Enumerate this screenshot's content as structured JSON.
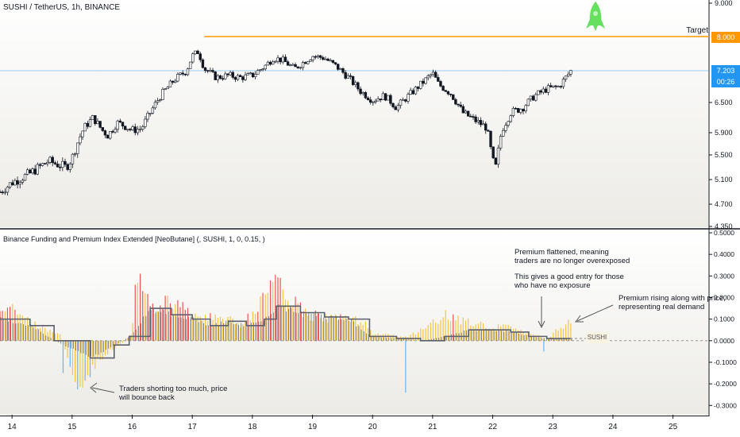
{
  "header": {
    "symbol_title": "SUSHI / TetherUS, 1h, BINANCE",
    "indicator_title": "Binance Funding and Premium Index Extended [NeoButane] (, SUSHI, 1, 0, 0.15, )"
  },
  "annotations": {
    "target": "Target",
    "flattened": "Premium flattened, meaning\ntraders are no longer overexposed",
    "entry": "This gives a good entry for those\nwho have no exposure",
    "rising": "Premium rising along with price,\nrepresenting real demand",
    "shorting": "Traders shorting too much, price\nwill bounce back",
    "symbol": "SUSHI"
  },
  "price_tags": {
    "target": "8.000",
    "last_price": "7.203",
    "countdown": "00:26"
  },
  "colors": {
    "target_line": "#ff9800",
    "last_price": "#2196f3",
    "up_candle": "#ffffff",
    "down_candle": "#131722",
    "bar_high": "#ef5350",
    "bar_mid": "#f5c542",
    "bar_low": "#64b5f6",
    "step_line": "#5d606b",
    "rocket": "#66e05e"
  },
  "chart_data": [
    {
      "type": "candlestick",
      "title": "SUSHI / TetherUS, 1h, BINANCE",
      "x_ticks": [
        "14",
        "15",
        "16",
        "17",
        "18",
        "19",
        "20",
        "21",
        "22",
        "23",
        "24",
        "25"
      ],
      "y_ticks": [
        "9.000",
        "8.000",
        "7.203",
        "6.500",
        "5.900",
        "5.500",
        "5.100",
        "4.700",
        "4.350"
      ],
      "y_axis_values": [
        9.0,
        8.0,
        7.203,
        6.5,
        5.9,
        5.5,
        5.1,
        4.7,
        4.35
      ],
      "ylim": [
        4.35,
        9.0
      ],
      "x_range_days": [
        13.8,
        25.6
      ],
      "target": 8.0,
      "last_price": 7.203,
      "close_path": [
        [
          13.8,
          4.9
        ],
        [
          14.0,
          5.05
        ],
        [
          14.3,
          5.2
        ],
        [
          14.6,
          5.4
        ],
        [
          14.9,
          5.3
        ],
        [
          15.0,
          5.45
        ],
        [
          15.1,
          5.75
        ],
        [
          15.2,
          6.0
        ],
        [
          15.35,
          6.2
        ],
        [
          15.5,
          5.95
        ],
        [
          15.6,
          5.85
        ],
        [
          15.75,
          6.1
        ],
        [
          15.85,
          6.05
        ],
        [
          16.0,
          5.95
        ],
        [
          16.15,
          5.98
        ],
        [
          16.3,
          6.3
        ],
        [
          16.5,
          6.7
        ],
        [
          16.7,
          7.0
        ],
        [
          16.9,
          7.2
        ],
        [
          17.0,
          7.55
        ],
        [
          17.1,
          7.65
        ],
        [
          17.2,
          7.25
        ],
        [
          17.4,
          7.05
        ],
        [
          17.6,
          7.1
        ],
        [
          17.8,
          7.05
        ],
        [
          18.0,
          7.1
        ],
        [
          18.2,
          7.3
        ],
        [
          18.35,
          7.5
        ],
        [
          18.5,
          7.45
        ],
        [
          18.7,
          7.25
        ],
        [
          18.9,
          7.45
        ],
        [
          19.0,
          7.55
        ],
        [
          19.2,
          7.5
        ],
        [
          19.4,
          7.3
        ],
        [
          19.6,
          7.05
        ],
        [
          19.8,
          6.75
        ],
        [
          20.0,
          6.55
        ],
        [
          20.2,
          6.65
        ],
        [
          20.4,
          6.4
        ],
        [
          20.6,
          6.65
        ],
        [
          20.8,
          6.9
        ],
        [
          21.0,
          7.15
        ],
        [
          21.1,
          6.9
        ],
        [
          21.3,
          6.7
        ],
        [
          21.5,
          6.3
        ],
        [
          21.7,
          6.15
        ],
        [
          21.9,
          6.0
        ],
        [
          22.0,
          5.4
        ],
        [
          22.05,
          5.3
        ],
        [
          22.15,
          5.95
        ],
        [
          22.3,
          6.3
        ],
        [
          22.5,
          6.4
        ],
        [
          22.7,
          6.65
        ],
        [
          22.9,
          6.8
        ],
        [
          23.1,
          6.85
        ],
        [
          23.3,
          7.2
        ]
      ]
    },
    {
      "type": "bar",
      "title": "Binance Funding and Premium Index Extended [NeoButane] (, SUSHI, 1, 0, 0.15, )",
      "y_ticks": [
        "0.5000",
        "0.4000",
        "0.3000",
        "0.2000",
        "0.1000",
        "0.0000",
        "-0.1000",
        "-0.2000",
        "-0.3000"
      ],
      "y_axis_values": [
        0.5,
        0.4,
        0.3,
        0.2,
        0.1,
        0.0,
        -0.1,
        -0.2,
        -0.3
      ],
      "ylim": [
        -0.38,
        0.5
      ],
      "premium_path": [
        [
          13.8,
          0.12
        ],
        [
          14.0,
          0.15
        ],
        [
          14.2,
          0.1
        ],
        [
          14.4,
          0.08
        ],
        [
          14.6,
          0.05
        ],
        [
          14.8,
          0.03
        ],
        [
          14.9,
          -0.05
        ],
        [
          15.0,
          -0.18
        ],
        [
          15.05,
          -0.25
        ],
        [
          15.1,
          -0.26
        ],
        [
          15.2,
          -0.2
        ],
        [
          15.3,
          -0.15
        ],
        [
          15.5,
          -0.08
        ],
        [
          15.7,
          -0.03
        ],
        [
          15.9,
          0.0
        ],
        [
          16.0,
          0.05
        ],
        [
          16.05,
          0.25
        ],
        [
          16.1,
          0.3
        ],
        [
          16.2,
          0.22
        ],
        [
          16.4,
          0.15
        ],
        [
          16.6,
          0.2
        ],
        [
          16.8,
          0.18
        ],
        [
          17.0,
          0.12
        ],
        [
          17.2,
          0.1
        ],
        [
          17.4,
          0.12
        ],
        [
          17.6,
          0.1
        ],
        [
          17.8,
          0.08
        ],
        [
          18.0,
          0.12
        ],
        [
          18.2,
          0.2
        ],
        [
          18.3,
          0.32
        ],
        [
          18.4,
          0.3
        ],
        [
          18.5,
          0.25
        ],
        [
          18.7,
          0.18
        ],
        [
          18.9,
          0.12
        ],
        [
          19.1,
          0.12
        ],
        [
          19.3,
          0.1
        ],
        [
          19.5,
          0.11
        ],
        [
          19.7,
          0.1
        ],
        [
          19.9,
          0.08
        ],
        [
          20.0,
          0.03
        ],
        [
          20.2,
          0.03
        ],
        [
          20.4,
          0.02
        ],
        [
          20.6,
          0.02
        ],
        [
          20.8,
          0.05
        ],
        [
          21.0,
          0.09
        ],
        [
          21.2,
          0.12
        ],
        [
          21.4,
          0.1
        ],
        [
          21.6,
          0.09
        ],
        [
          21.8,
          0.08
        ],
        [
          22.0,
          0.05
        ],
        [
          22.2,
          0.08
        ],
        [
          22.4,
          0.06
        ],
        [
          22.6,
          0.03
        ],
        [
          22.8,
          0.02
        ],
        [
          22.9,
          0.0
        ],
        [
          23.0,
          0.03
        ],
        [
          23.1,
          0.06
        ],
        [
          23.3,
          0.09
        ]
      ],
      "step_line": [
        [
          13.8,
          0.1
        ],
        [
          14.3,
          0.07
        ],
        [
          14.7,
          0.0
        ],
        [
          15.3,
          -0.08
        ],
        [
          15.7,
          -0.02
        ],
        [
          15.95,
          0.02
        ],
        [
          16.3,
          0.15
        ],
        [
          16.65,
          0.12
        ],
        [
          17.0,
          0.1
        ],
        [
          17.3,
          0.07
        ],
        [
          17.6,
          0.09
        ],
        [
          17.9,
          0.07
        ],
        [
          18.2,
          0.1
        ],
        [
          18.4,
          0.16
        ],
        [
          18.8,
          0.13
        ],
        [
          19.2,
          0.11
        ],
        [
          19.6,
          0.1
        ],
        [
          19.95,
          0.02
        ],
        [
          20.4,
          0.01
        ],
        [
          20.8,
          0.0
        ],
        [
          21.2,
          0.02
        ],
        [
          21.6,
          0.05
        ],
        [
          22.0,
          0.05
        ],
        [
          22.3,
          0.04
        ],
        [
          22.6,
          0.02
        ],
        [
          22.9,
          0.01
        ],
        [
          23.3,
          0.01
        ]
      ],
      "outliers": [
        [
          14.85,
          -0.15
        ],
        [
          20.55,
          -0.24
        ],
        [
          22.85,
          -0.05
        ]
      ]
    }
  ]
}
